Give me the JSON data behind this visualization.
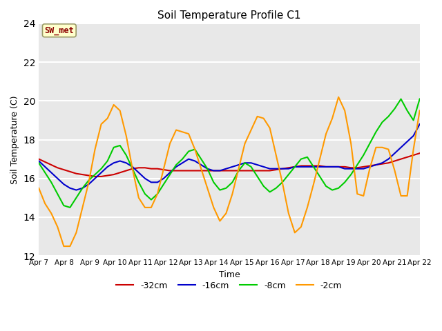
{
  "title": "Soil Temperature Profile C1",
  "xlabel": "Time",
  "ylabel": "Soil Temperature (C)",
  "ylim": [
    12,
    24
  ],
  "yticks": [
    12,
    14,
    16,
    18,
    20,
    22,
    24
  ],
  "background_color": "#e8e8e8",
  "annotation_text": "SW_met",
  "annotation_color": "#8b0000",
  "annotation_bg": "#ffffcc",
  "annotation_border": "#999966",
  "xtick_labels": [
    "Apr 7",
    "Apr 8",
    "Apr 9",
    "Apr 10",
    "Apr 11",
    "Apr 12",
    "Apr 13",
    "Apr 14",
    "Apr 15",
    "Apr 16",
    "Apr 17",
    "Apr 18",
    "Apr 19",
    "Apr 20",
    "Apr 21",
    "Apr 22"
  ],
  "xtick_positions": [
    0,
    1,
    2,
    3,
    4,
    5,
    6,
    7,
    8,
    9,
    10,
    11,
    12,
    13,
    14,
    15
  ],
  "legend_entries": [
    {
      "label": "-32cm",
      "color": "#cc0000",
      "linestyle": "-"
    },
    {
      "label": "-16cm",
      "color": "#0000cc",
      "linestyle": "-"
    },
    {
      "label": "-8cm",
      "color": "#00cc00",
      "linestyle": "-"
    },
    {
      "label": "-2cm",
      "color": "#ff9900",
      "linestyle": "-"
    }
  ],
  "series_32cm": {
    "color": "#cc0000",
    "linewidth": 1.5,
    "y": [
      17.0,
      16.85,
      16.7,
      16.55,
      16.45,
      16.35,
      16.25,
      16.2,
      16.15,
      16.1,
      16.1,
      16.15,
      16.2,
      16.3,
      16.4,
      16.5,
      16.55,
      16.55,
      16.5,
      16.5,
      16.45,
      16.4,
      16.4,
      16.4,
      16.4,
      16.4,
      16.4,
      16.4,
      16.4,
      16.4,
      16.4,
      16.4,
      16.4,
      16.4,
      16.4,
      16.4,
      16.4,
      16.4,
      16.45,
      16.5,
      16.55,
      16.6,
      16.65,
      16.65,
      16.65,
      16.65,
      16.6,
      16.6,
      16.6,
      16.6,
      16.55,
      16.55,
      16.6,
      16.65,
      16.7,
      16.75,
      16.8,
      16.9,
      17.0,
      17.1,
      17.2,
      17.3
    ]
  },
  "series_16cm": {
    "color": "#0000cc",
    "linewidth": 1.5,
    "y": [
      16.9,
      16.6,
      16.3,
      16.0,
      15.7,
      15.5,
      15.4,
      15.5,
      15.7,
      16.0,
      16.3,
      16.6,
      16.8,
      16.9,
      16.8,
      16.6,
      16.3,
      16.0,
      15.8,
      15.8,
      16.0,
      16.3,
      16.6,
      16.8,
      17.0,
      16.9,
      16.7,
      16.5,
      16.4,
      16.4,
      16.5,
      16.6,
      16.7,
      16.8,
      16.8,
      16.7,
      16.6,
      16.5,
      16.5,
      16.5,
      16.5,
      16.6,
      16.6,
      16.6,
      16.6,
      16.6,
      16.6,
      16.6,
      16.6,
      16.5,
      16.5,
      16.5,
      16.5,
      16.6,
      16.7,
      16.8,
      17.0,
      17.3,
      17.6,
      17.9,
      18.2,
      18.8
    ]
  },
  "series_8cm": {
    "color": "#00cc00",
    "linewidth": 1.5,
    "y": [
      16.8,
      16.3,
      15.8,
      15.2,
      14.6,
      14.5,
      15.0,
      15.5,
      15.9,
      16.2,
      16.5,
      16.9,
      17.6,
      17.7,
      17.2,
      16.5,
      15.8,
      15.2,
      14.9,
      15.2,
      15.7,
      16.2,
      16.7,
      17.0,
      17.4,
      17.5,
      17.0,
      16.5,
      15.8,
      15.4,
      15.5,
      15.8,
      16.4,
      16.8,
      16.6,
      16.1,
      15.6,
      15.3,
      15.5,
      15.8,
      16.2,
      16.6,
      17.0,
      17.1,
      16.6,
      16.1,
      15.6,
      15.4,
      15.5,
      15.8,
      16.2,
      16.7,
      17.2,
      17.8,
      18.4,
      18.9,
      19.2,
      19.6,
      20.1,
      19.5,
      19.0,
      20.1
    ]
  },
  "series_2cm": {
    "color": "#ff9900",
    "linewidth": 1.5,
    "y": [
      15.5,
      14.7,
      14.2,
      13.5,
      12.5,
      12.5,
      13.2,
      14.5,
      15.8,
      17.5,
      18.8,
      19.1,
      19.8,
      19.5,
      18.2,
      16.5,
      15.0,
      14.5,
      14.5,
      15.2,
      16.5,
      17.8,
      18.5,
      18.4,
      18.3,
      17.5,
      16.5,
      15.5,
      14.5,
      13.8,
      14.2,
      15.2,
      16.5,
      17.8,
      18.5,
      19.2,
      19.1,
      18.6,
      17.2,
      15.8,
      14.2,
      13.2,
      13.5,
      14.5,
      15.7,
      17.0,
      18.3,
      19.1,
      20.2,
      19.5,
      17.8,
      15.2,
      15.1,
      16.5,
      17.6,
      17.6,
      17.5,
      16.4,
      15.1,
      15.1,
      17.5,
      19.5
    ]
  }
}
